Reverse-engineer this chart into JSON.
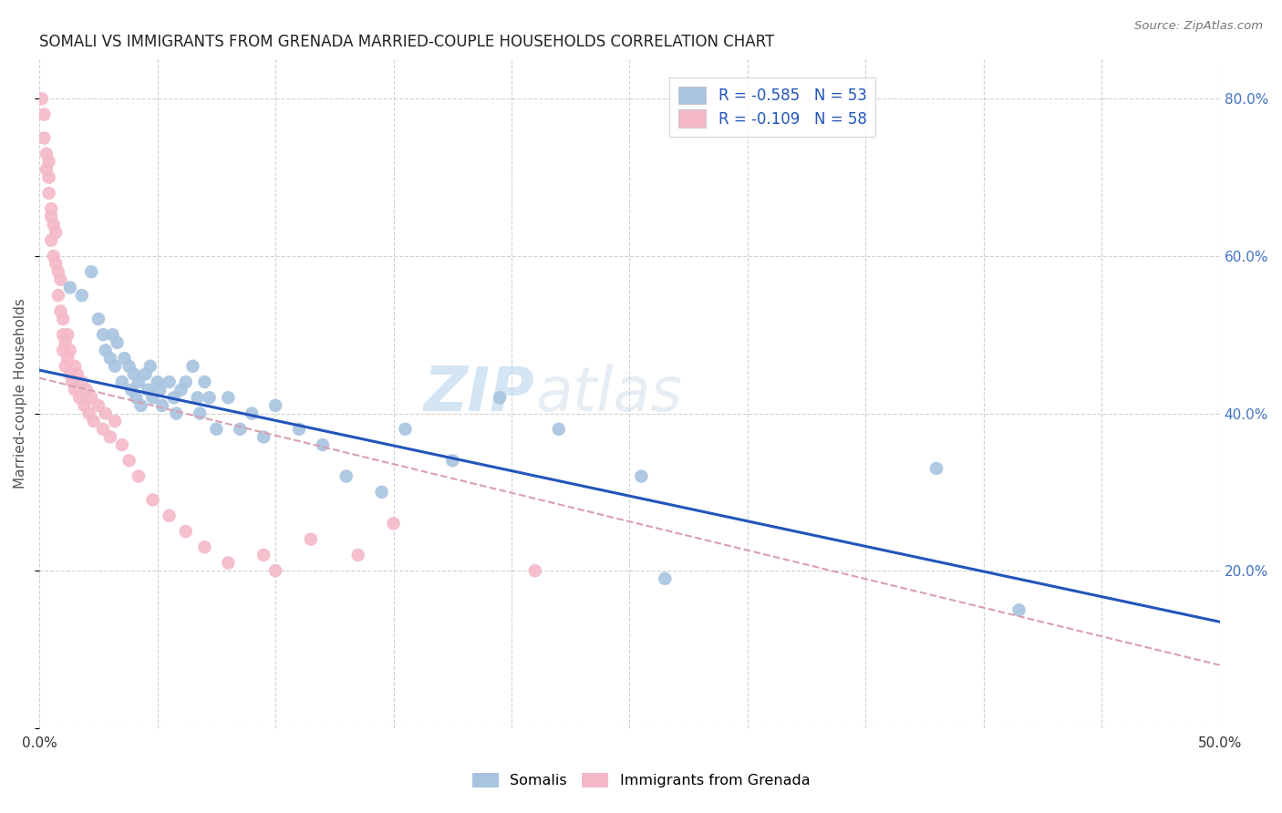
{
  "title": "SOMALI VS IMMIGRANTS FROM GRENADA MARRIED-COUPLE HOUSEHOLDS CORRELATION CHART",
  "source": "Source: ZipAtlas.com",
  "ylabel": "Married-couple Households",
  "xlim": [
    0.0,
    0.5
  ],
  "ylim": [
    0.0,
    0.85
  ],
  "legend_r_somali": "R = -0.585",
  "legend_n_somali": "N = 53",
  "legend_r_grenada": "R = -0.109",
  "legend_n_grenada": "N = 58",
  "color_somali": "#a8c4e0",
  "color_grenada": "#f4b8c8",
  "color_line_somali": "#2255bb",
  "color_line_grenada": "#d8a0b0",
  "watermark_zip": "ZIP",
  "watermark_atlas": "atlas",
  "background_color": "#ffffff",
  "grid_color": "#cccccc",
  "somali_x": [
    0.013,
    0.018,
    0.022,
    0.025,
    0.027,
    0.028,
    0.03,
    0.031,
    0.032,
    0.033,
    0.035,
    0.036,
    0.038,
    0.039,
    0.04,
    0.041,
    0.042,
    0.043,
    0.045,
    0.046,
    0.047,
    0.048,
    0.05,
    0.051,
    0.052,
    0.055,
    0.057,
    0.058,
    0.06,
    0.062,
    0.065,
    0.067,
    0.068,
    0.07,
    0.072,
    0.075,
    0.08,
    0.085,
    0.09,
    0.095,
    0.1,
    0.11,
    0.12,
    0.13,
    0.145,
    0.155,
    0.175,
    0.195,
    0.22,
    0.255,
    0.265,
    0.38,
    0.415
  ],
  "somali_y": [
    0.56,
    0.55,
    0.58,
    0.52,
    0.5,
    0.48,
    0.47,
    0.5,
    0.46,
    0.49,
    0.44,
    0.47,
    0.46,
    0.43,
    0.45,
    0.42,
    0.44,
    0.41,
    0.45,
    0.43,
    0.46,
    0.42,
    0.44,
    0.43,
    0.41,
    0.44,
    0.42,
    0.4,
    0.43,
    0.44,
    0.46,
    0.42,
    0.4,
    0.44,
    0.42,
    0.38,
    0.42,
    0.38,
    0.4,
    0.37,
    0.41,
    0.38,
    0.36,
    0.32,
    0.3,
    0.38,
    0.34,
    0.42,
    0.38,
    0.32,
    0.19,
    0.33,
    0.15
  ],
  "grenada_x": [
    0.001,
    0.002,
    0.002,
    0.003,
    0.003,
    0.004,
    0.004,
    0.004,
    0.005,
    0.005,
    0.005,
    0.006,
    0.006,
    0.007,
    0.007,
    0.008,
    0.008,
    0.009,
    0.009,
    0.01,
    0.01,
    0.01,
    0.011,
    0.011,
    0.012,
    0.012,
    0.013,
    0.013,
    0.014,
    0.015,
    0.015,
    0.016,
    0.017,
    0.018,
    0.019,
    0.02,
    0.021,
    0.022,
    0.023,
    0.025,
    0.027,
    0.028,
    0.03,
    0.032,
    0.035,
    0.038,
    0.042,
    0.048,
    0.055,
    0.062,
    0.07,
    0.08,
    0.095,
    0.1,
    0.115,
    0.135,
    0.15,
    0.21
  ],
  "grenada_y": [
    0.8,
    0.78,
    0.75,
    0.73,
    0.71,
    0.7,
    0.72,
    0.68,
    0.66,
    0.65,
    0.62,
    0.64,
    0.6,
    0.63,
    0.59,
    0.58,
    0.55,
    0.57,
    0.53,
    0.5,
    0.48,
    0.52,
    0.49,
    0.46,
    0.5,
    0.47,
    0.45,
    0.48,
    0.44,
    0.46,
    0.43,
    0.45,
    0.42,
    0.44,
    0.41,
    0.43,
    0.4,
    0.42,
    0.39,
    0.41,
    0.38,
    0.4,
    0.37,
    0.39,
    0.36,
    0.34,
    0.32,
    0.29,
    0.27,
    0.25,
    0.23,
    0.21,
    0.22,
    0.2,
    0.24,
    0.22,
    0.26,
    0.2
  ]
}
